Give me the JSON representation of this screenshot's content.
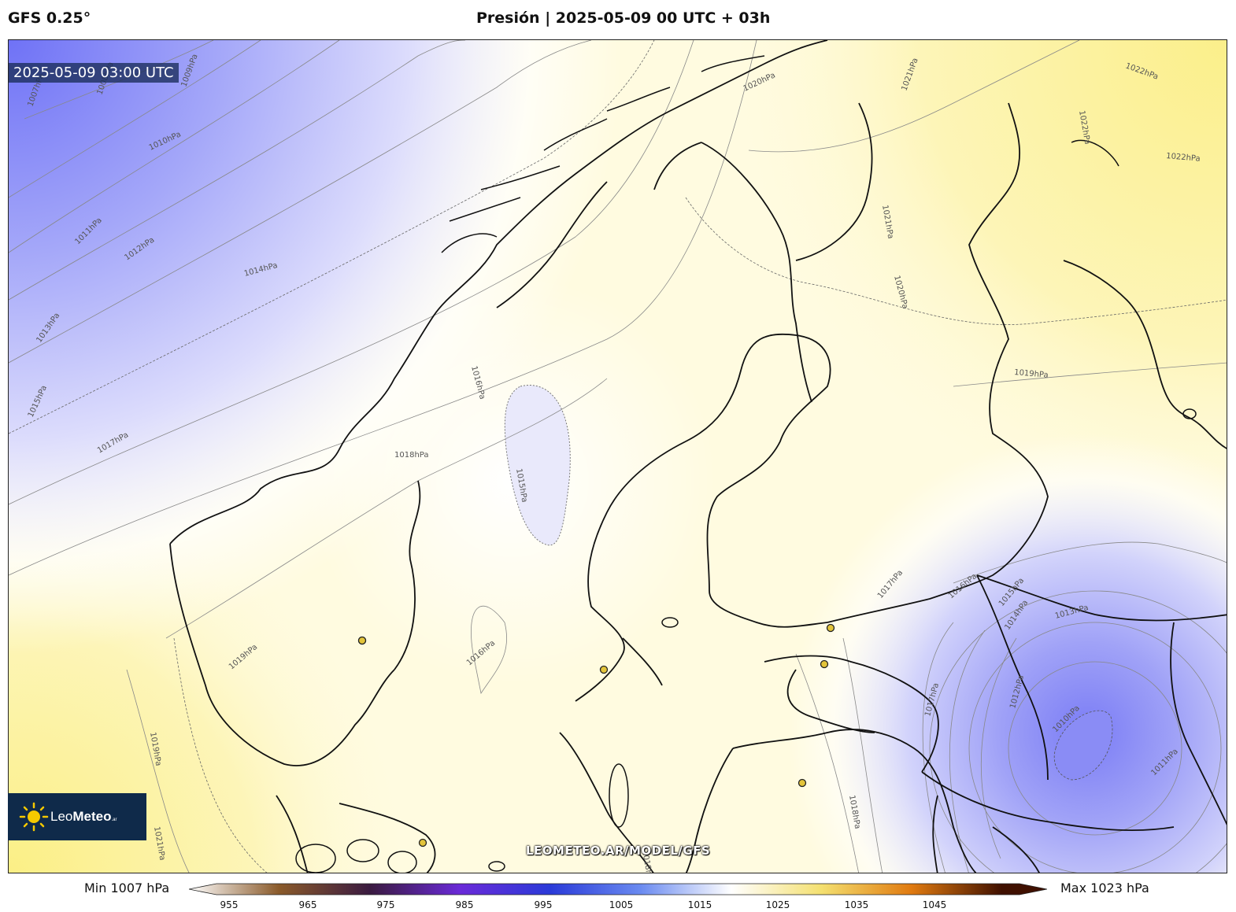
{
  "header": {
    "model": "GFS 0.25°",
    "title": "Presión | 2025-05-09 00 UTC + 03h"
  },
  "map": {
    "timestamp": "2025-05-09 03:00 UTC",
    "watermark": "LEOMETEO.AR/MODEL/GFS",
    "logo": {
      "brand_light": "Leo",
      "brand_bold": "Meteo",
      "suffix": ".ar"
    },
    "isobar_labels": [
      "1007hPa",
      "1008hPa",
      "1009hPa",
      "1010hPa",
      "1011hPa",
      "1012hPa",
      "1013hPa",
      "1014hPa",
      "1015hPa",
      "1016hPa",
      "1017hPa",
      "1018hPa",
      "1019hPa",
      "1020hPa",
      "1021hPa",
      "1022hPa",
      "1015hPa",
      "1016hPa",
      "1017hPa",
      "1018hPa",
      "1019hPa",
      "1020hPa",
      "1021hPa",
      "1022hPa",
      "1010hPa",
      "1011hPa",
      "1012hPa",
      "1013hPa",
      "1014hPa",
      "1015hPa",
      "1016hPa",
      "1017hPa",
      "1018hPa",
      "1019hPa",
      "1021hPa",
      "1022hPa"
    ]
  },
  "colorbar": {
    "min_label": "Min 1007 hPa",
    "max_label": "Max 1023 hPa",
    "ticks": [
      "955",
      "965",
      "975",
      "985",
      "995",
      "1005",
      "1015",
      "1025",
      "1035",
      "1045"
    ],
    "stops": [
      {
        "value": 955,
        "color": "#ffffff"
      },
      {
        "value": 965,
        "color": "#8a5a2a"
      },
      {
        "value": 975,
        "color": "#3a1a40"
      },
      {
        "value": 985,
        "color": "#6a2ad8"
      },
      {
        "value": 995,
        "color": "#2a3ad8"
      },
      {
        "value": 1005,
        "color": "#6a8af0"
      },
      {
        "value": 1015,
        "color": "#ffffff"
      },
      {
        "value": 1025,
        "color": "#f4e070"
      },
      {
        "value": 1035,
        "color": "#e07a10"
      },
      {
        "value": 1045,
        "color": "#401000"
      }
    ]
  },
  "colors": {
    "low": "#6f72f6",
    "mid": "#ffffff",
    "high": "#fbf193",
    "coast": "#111111"
  },
  "cities": [
    {
      "name": "city-oslo"
    },
    {
      "name": "city-stockholm"
    },
    {
      "name": "city-helsinki"
    },
    {
      "name": "city-tallinn"
    },
    {
      "name": "city-riga"
    },
    {
      "name": "city-copenhagen"
    },
    {
      "name": "city-bergen"
    }
  ]
}
